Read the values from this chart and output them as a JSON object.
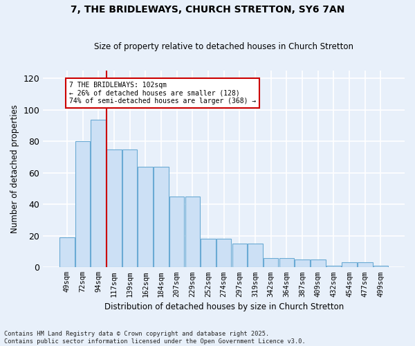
{
  "title_line1": "7, THE BRIDLEWAYS, CHURCH STRETTON, SY6 7AN",
  "title_line2": "Size of property relative to detached houses in Church Stretton",
  "xlabel": "Distribution of detached houses by size in Church Stretton",
  "ylabel": "Number of detached properties",
  "categories": [
    "49sqm",
    "72sqm",
    "94sqm",
    "117sqm",
    "139sqm",
    "162sqm",
    "184sqm",
    "207sqm",
    "229sqm",
    "252sqm",
    "274sqm",
    "297sqm",
    "319sqm",
    "342sqm",
    "364sqm",
    "387sqm",
    "409sqm",
    "432sqm",
    "454sqm",
    "477sqm",
    "499sqm"
  ],
  "bar_heights": [
    19,
    80,
    94,
    75,
    75,
    64,
    64,
    45,
    45,
    18,
    18,
    15,
    15,
    6,
    6,
    5,
    5,
    1,
    3,
    3,
    1
  ],
  "bar_color": "#cce0f5",
  "bar_edge_color": "#6aaad4",
  "background_color": "#e8f0fa",
  "grid_color": "#ffffff",
  "fig_bg_color": "#e8f0fa",
  "annotation_box_facecolor": "#ffffff",
  "annotation_border_color": "#cc0000",
  "vline_color": "#cc0000",
  "vline_x_idx": 2.5,
  "annotation_text_line1": "7 THE BRIDLEWAYS: 102sqm",
  "annotation_text_line2": "← 26% of detached houses are smaller (128)",
  "annotation_text_line3": "74% of semi-detached houses are larger (368) →",
  "footnote_line1": "Contains HM Land Registry data © Crown copyright and database right 2025.",
  "footnote_line2": "Contains public sector information licensed under the Open Government Licence v3.0.",
  "ylim_max": 125,
  "yticks": [
    0,
    20,
    40,
    60,
    80,
    100,
    120
  ]
}
